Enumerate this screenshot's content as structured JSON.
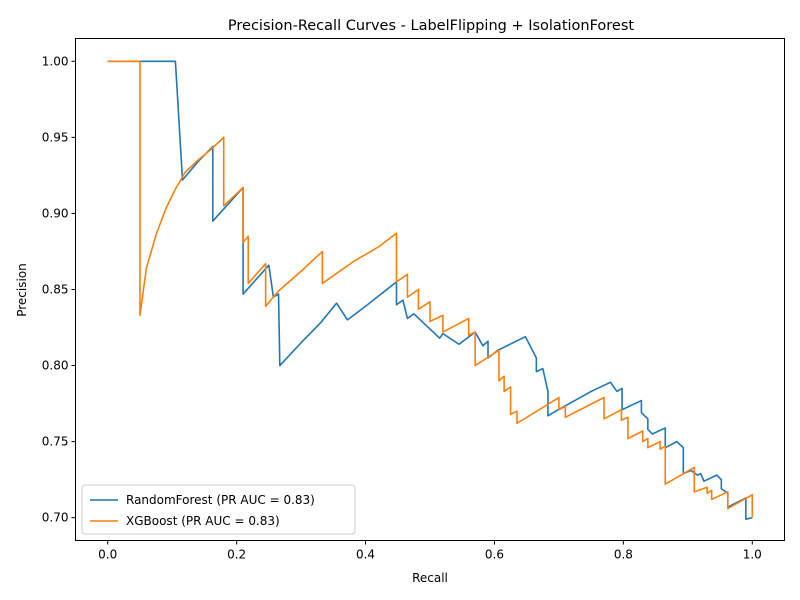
{
  "chart_data": {
    "type": "line",
    "title": "Precision-Recall Curves - LabelFlipping + IsolationForest",
    "xlabel": "Recall",
    "ylabel": "Precision",
    "xlim": [
      -0.05,
      1.05
    ],
    "ylim": [
      0.685,
      1.015
    ],
    "xticks": [
      0.0,
      0.2,
      0.4,
      0.6,
      0.8,
      1.0
    ],
    "xtick_labels": [
      "0.0",
      "0.2",
      "0.4",
      "0.6",
      "0.8",
      "1.0"
    ],
    "yticks": [
      0.7,
      0.75,
      0.8,
      0.85,
      0.9,
      0.95,
      1.0
    ],
    "ytick_labels": [
      "0.70",
      "0.75",
      "0.80",
      "0.85",
      "0.90",
      "0.95",
      "1.00"
    ],
    "grid": false,
    "legend_position": "lower-left",
    "series": [
      {
        "name": "RandomForest (PR AUC = 0.83)",
        "color": "#1f77b4",
        "points": [
          [
            0.0,
            1.0
          ],
          [
            0.105,
            1.0
          ],
          [
            0.116,
            0.922
          ],
          [
            0.14,
            0.934
          ],
          [
            0.163,
            0.944
          ],
          [
            0.163,
            0.895
          ],
          [
            0.21,
            0.917
          ],
          [
            0.21,
            0.847
          ],
          [
            0.25,
            0.866
          ],
          [
            0.257,
            0.845
          ],
          [
            0.265,
            0.847
          ],
          [
            0.267,
            0.8
          ],
          [
            0.3,
            0.815
          ],
          [
            0.33,
            0.828
          ],
          [
            0.355,
            0.841
          ],
          [
            0.372,
            0.83
          ],
          [
            0.4,
            0.839
          ],
          [
            0.448,
            0.855
          ],
          [
            0.448,
            0.84
          ],
          [
            0.458,
            0.843
          ],
          [
            0.465,
            0.831
          ],
          [
            0.475,
            0.834
          ],
          [
            0.515,
            0.818
          ],
          [
            0.52,
            0.821
          ],
          [
            0.545,
            0.814
          ],
          [
            0.57,
            0.822
          ],
          [
            0.582,
            0.813
          ],
          [
            0.59,
            0.816
          ],
          [
            0.59,
            0.805
          ],
          [
            0.605,
            0.81
          ],
          [
            0.648,
            0.819
          ],
          [
            0.665,
            0.805
          ],
          [
            0.665,
            0.796
          ],
          [
            0.675,
            0.798
          ],
          [
            0.683,
            0.783
          ],
          [
            0.683,
            0.767
          ],
          [
            0.695,
            0.77
          ],
          [
            0.75,
            0.783
          ],
          [
            0.78,
            0.789
          ],
          [
            0.79,
            0.783
          ],
          [
            0.798,
            0.785
          ],
          [
            0.798,
            0.771
          ],
          [
            0.828,
            0.777
          ],
          [
            0.828,
            0.769
          ],
          [
            0.838,
            0.765
          ],
          [
            0.838,
            0.758
          ],
          [
            0.845,
            0.755
          ],
          [
            0.865,
            0.759
          ],
          [
            0.865,
            0.746
          ],
          [
            0.883,
            0.75
          ],
          [
            0.893,
            0.746
          ],
          [
            0.893,
            0.729
          ],
          [
            0.905,
            0.731
          ],
          [
            0.915,
            0.728
          ],
          [
            0.92,
            0.729
          ],
          [
            0.925,
            0.724
          ],
          [
            0.945,
            0.728
          ],
          [
            0.952,
            0.725
          ],
          [
            0.952,
            0.719
          ],
          [
            0.962,
            0.716
          ],
          [
            0.962,
            0.707
          ],
          [
            0.99,
            0.713
          ],
          [
            0.99,
            0.699
          ],
          [
            1.0,
            0.7
          ]
        ]
      },
      {
        "name": "XGBoost (PR AUC = 0.83)",
        "color": "#ff7f0e",
        "points": [
          [
            0.0,
            1.0
          ],
          [
            0.05,
            1.0
          ],
          [
            0.05,
            0.833
          ],
          [
            0.06,
            0.864
          ],
          [
            0.075,
            0.886
          ],
          [
            0.09,
            0.903
          ],
          [
            0.105,
            0.916
          ],
          [
            0.12,
            0.927
          ],
          [
            0.14,
            0.935
          ],
          [
            0.16,
            0.942
          ],
          [
            0.18,
            0.95
          ],
          [
            0.18,
            0.905
          ],
          [
            0.21,
            0.917
          ],
          [
            0.21,
            0.881
          ],
          [
            0.218,
            0.885
          ],
          [
            0.218,
            0.854
          ],
          [
            0.245,
            0.867
          ],
          [
            0.245,
            0.839
          ],
          [
            0.265,
            0.849
          ],
          [
            0.3,
            0.862
          ],
          [
            0.333,
            0.875
          ],
          [
            0.333,
            0.854
          ],
          [
            0.38,
            0.868
          ],
          [
            0.42,
            0.878
          ],
          [
            0.448,
            0.887
          ],
          [
            0.448,
            0.855
          ],
          [
            0.465,
            0.86
          ],
          [
            0.465,
            0.845
          ],
          [
            0.482,
            0.85
          ],
          [
            0.482,
            0.837
          ],
          [
            0.5,
            0.842
          ],
          [
            0.5,
            0.829
          ],
          [
            0.52,
            0.833
          ],
          [
            0.52,
            0.822
          ],
          [
            0.56,
            0.831
          ],
          [
            0.56,
            0.82
          ],
          [
            0.57,
            0.822
          ],
          [
            0.57,
            0.8
          ],
          [
            0.607,
            0.81
          ],
          [
            0.607,
            0.79
          ],
          [
            0.615,
            0.793
          ],
          [
            0.615,
            0.783
          ],
          [
            0.625,
            0.786
          ],
          [
            0.625,
            0.768
          ],
          [
            0.635,
            0.77
          ],
          [
            0.635,
            0.762
          ],
          [
            0.7,
            0.779
          ],
          [
            0.7,
            0.771
          ],
          [
            0.71,
            0.773
          ],
          [
            0.71,
            0.766
          ],
          [
            0.77,
            0.779
          ],
          [
            0.77,
            0.765
          ],
          [
            0.797,
            0.771
          ],
          [
            0.797,
            0.764
          ],
          [
            0.807,
            0.766
          ],
          [
            0.807,
            0.752
          ],
          [
            0.83,
            0.757
          ],
          [
            0.83,
            0.75
          ],
          [
            0.838,
            0.752
          ],
          [
            0.838,
            0.746
          ],
          [
            0.857,
            0.75
          ],
          [
            0.857,
            0.745
          ],
          [
            0.865,
            0.747
          ],
          [
            0.865,
            0.722
          ],
          [
            0.91,
            0.733
          ],
          [
            0.91,
            0.717
          ],
          [
            0.93,
            0.72
          ],
          [
            0.93,
            0.716
          ],
          [
            0.937,
            0.718
          ],
          [
            0.937,
            0.712
          ],
          [
            0.962,
            0.717
          ],
          [
            0.962,
            0.706
          ],
          [
            1.0,
            0.715
          ],
          [
            1.0,
            0.7
          ]
        ]
      }
    ]
  }
}
